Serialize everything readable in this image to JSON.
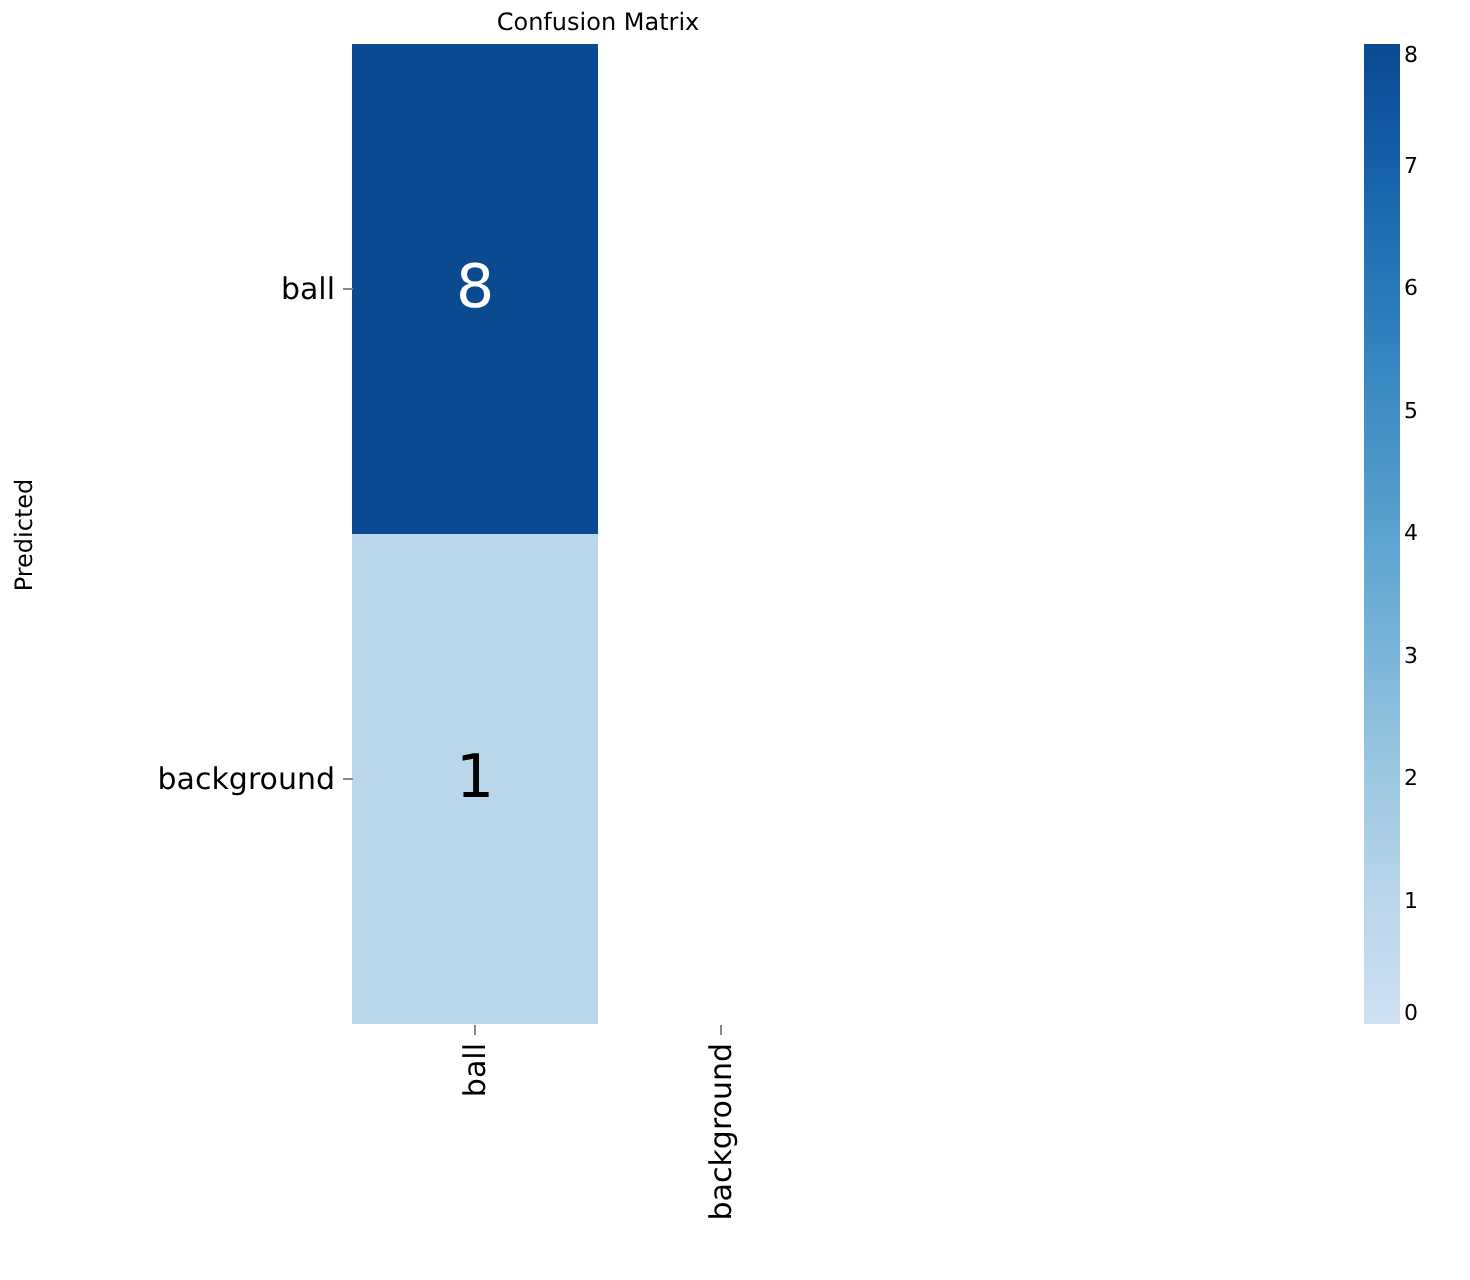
{
  "chart_data": {
    "type": "heatmap",
    "title": "Confusion Matrix",
    "ylabel": "Predicted",
    "categories": [
      "ball",
      "background"
    ],
    "y_categories": [
      "ball",
      "background"
    ],
    "cells": [
      [
        8,
        null
      ],
      [
        1,
        null
      ]
    ],
    "clim": [
      0,
      8
    ],
    "cticks": [
      0,
      1,
      2,
      3,
      4,
      5,
      6,
      7,
      8
    ],
    "data_labels": true
  }
}
